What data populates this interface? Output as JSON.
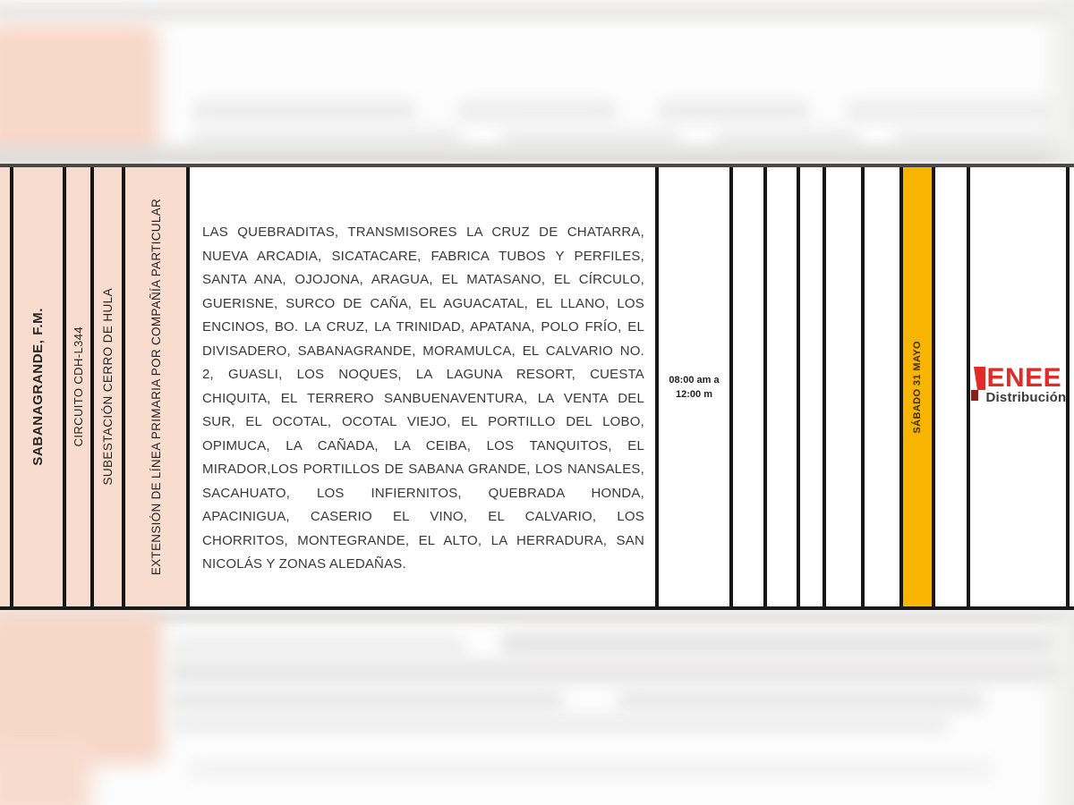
{
  "outage_row": {
    "location": "SABANAGRANDE, F.M.",
    "circuit": "CIRCUITO CDH-L344",
    "substation": "SUBESTACIÓN CERRO DE HULA",
    "work_description": "EXTENSIÓN DE LÍNEA PRIMARIA POR COMPAÑÍA PARTICULAR",
    "affected_areas_lines": [
      "LAS QUEBRADITAS, TRANSMISORES LA CRUZ DE CHATARRA,",
      "NUEVA ARCADIA, SICATACARE, FABRICA TUBOS Y PERFILES,",
      "SANTA ANA, OJOJONA, ARAGUA, EL MATASANO, EL CÍRCULO,",
      "GUERISNE, SURCO DE CAÑA, EL AGUACATAL, EL LLANO, LOS",
      "ENCINOS, BO. LA CRUZ, LA TRINIDAD, APATANA, POLO FRÍO, EL",
      "DIVISADERO, SABANAGRANDE, MORAMULCA, EL CALVARIO NO.",
      "2, GUASLI, LOS NOQUES, LA LAGUNA RESORT, CUESTA",
      "CHIQUITA, EL TERRERO SANBUENAVENTURA, LA VENTA DEL",
      "SUR, EL OCOTAL, OCOTAL VIEJO, EL PORTILLO DEL LOBO,",
      "OPIMUCA, LA CAÑADA, LA CEIBA, LOS TANQUITOS, EL",
      "MIRADOR,LOS PORTILLOS DE SABANA GRANDE, LOS NANSALES,",
      "SACAHUATO, LOS INFIERNITOS, QUEBRADA HONDA,",
      "APACINIGUA, CASERIO EL VINO, EL CALVARIO, LOS",
      "CHORRITOS, MONTEGRANDE, EL ALTO, LA HERRADURA, SAN",
      "NICOLÁS Y ZONAS ALEDAÑAS."
    ],
    "schedule": {
      "line1": "08:00 am a",
      "line2": "12:00 m"
    },
    "date": "SÁBADO 31 MAYO"
  },
  "logo": {
    "title": "ENEE",
    "subtitle": "Distribución"
  },
  "colors": {
    "header_pink": "#f8dccd",
    "date_yellow": "#f7b502",
    "border_black": "#161616",
    "logo_red": "#e12b28",
    "logo_dark": "#3b3b3b"
  }
}
